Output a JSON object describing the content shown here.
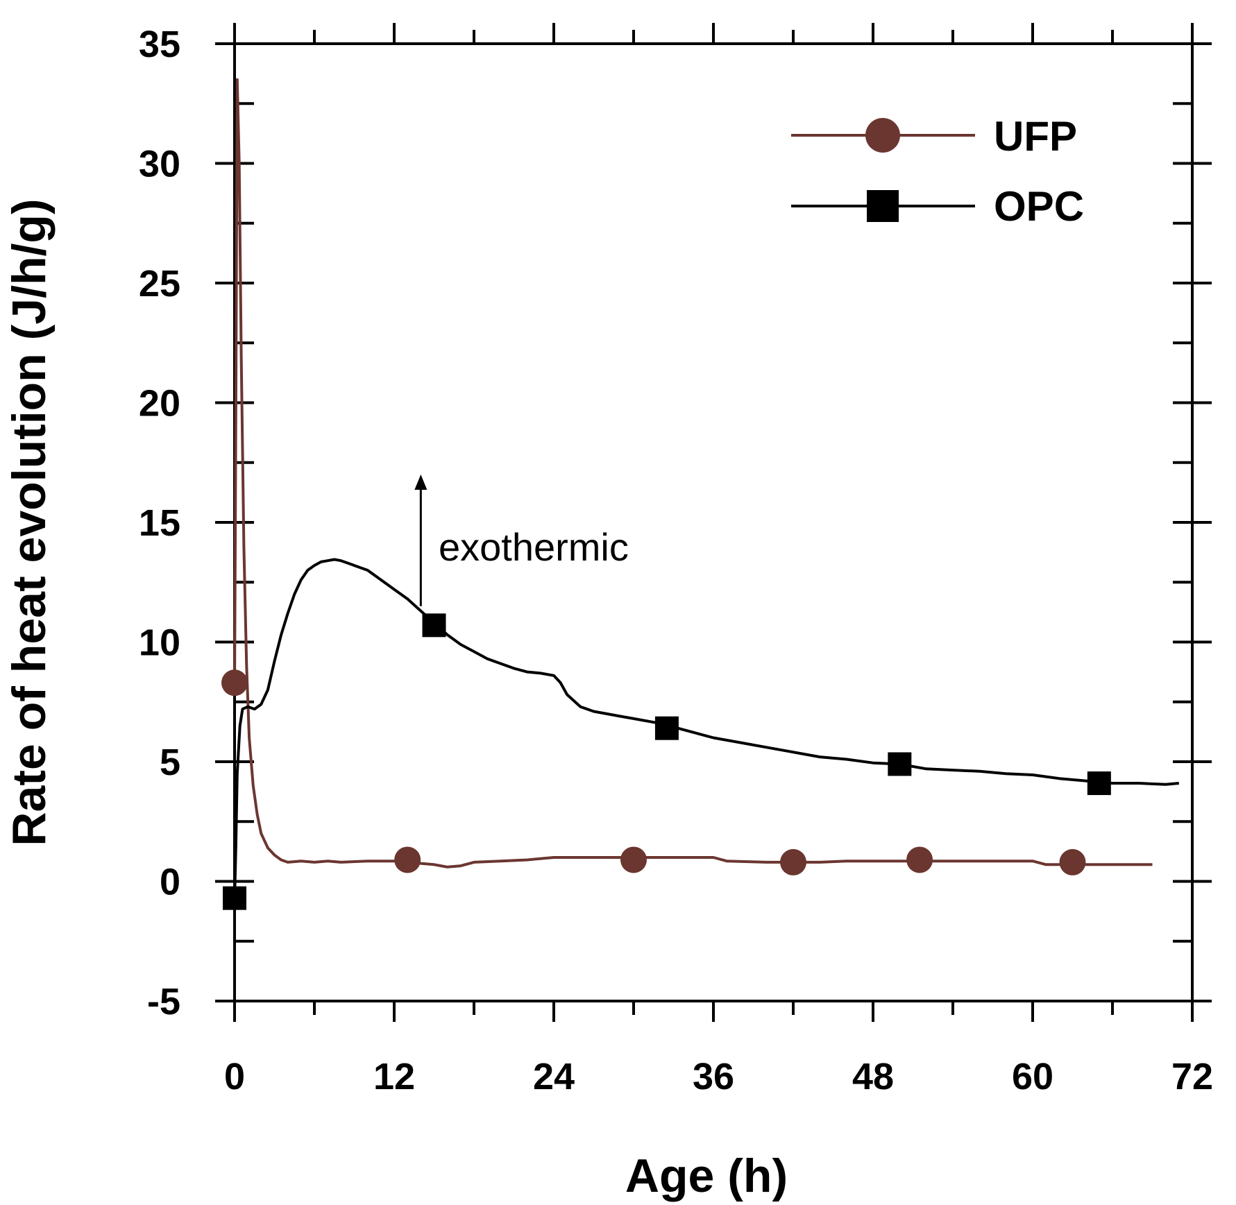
{
  "chart_data": {
    "type": "line",
    "xlabel": "Age (h)",
    "ylabel": "Rate of heat evolution (J/h/g)",
    "xlim": [
      0,
      72
    ],
    "ylim": [
      -5,
      35
    ],
    "xticks": [
      0,
      12,
      24,
      36,
      48,
      60,
      72
    ],
    "xtick_labels": [
      "0",
      "12",
      "24",
      "36",
      "48",
      "60",
      "72"
    ],
    "yticks": [
      -5,
      0,
      5,
      10,
      15,
      20,
      25,
      30,
      35
    ],
    "ytick_labels": [
      "-5",
      "0",
      "5",
      "10",
      "15",
      "20",
      "25",
      "30",
      "35"
    ],
    "grid": false,
    "legend_position": "top-right",
    "annotation": {
      "text": "exothermic",
      "arrow_x": 14,
      "arrow_from_y": 11.5,
      "arrow_to_y": 17
    },
    "series": [
      {
        "name": "UFP",
        "color": "#6b3630",
        "marker": "circle",
        "line": [
          [
            0,
            8
          ],
          [
            0.1,
            20
          ],
          [
            0.2,
            33.5
          ],
          [
            0.35,
            30
          ],
          [
            0.5,
            22
          ],
          [
            0.7,
            14
          ],
          [
            0.9,
            9
          ],
          [
            1.1,
            6
          ],
          [
            1.4,
            4
          ],
          [
            1.7,
            2.8
          ],
          [
            2.0,
            2.0
          ],
          [
            2.5,
            1.4
          ],
          [
            3.0,
            1.1
          ],
          [
            3.5,
            0.9
          ],
          [
            4.0,
            0.8
          ],
          [
            5,
            0.85
          ],
          [
            6,
            0.8
          ],
          [
            7,
            0.85
          ],
          [
            8,
            0.8
          ],
          [
            10,
            0.85
          ],
          [
            12,
            0.85
          ],
          [
            13,
            0.85
          ],
          [
            14,
            0.75
          ],
          [
            15,
            0.7
          ],
          [
            16,
            0.6
          ],
          [
            17,
            0.65
          ],
          [
            18,
            0.8
          ],
          [
            20,
            0.85
          ],
          [
            22,
            0.9
          ],
          [
            24,
            1.0
          ],
          [
            26,
            1.0
          ],
          [
            28,
            1.0
          ],
          [
            30,
            1.0
          ],
          [
            32,
            1.0
          ],
          [
            34,
            1.0
          ],
          [
            36,
            1.0
          ],
          [
            37,
            0.85
          ],
          [
            40,
            0.8
          ],
          [
            42,
            0.8
          ],
          [
            44,
            0.8
          ],
          [
            46,
            0.85
          ],
          [
            48,
            0.85
          ],
          [
            50,
            0.85
          ],
          [
            52,
            0.85
          ],
          [
            54,
            0.85
          ],
          [
            56,
            0.85
          ],
          [
            59,
            0.85
          ],
          [
            60,
            0.85
          ],
          [
            61,
            0.7
          ],
          [
            63,
            0.7
          ],
          [
            65,
            0.7
          ],
          [
            67,
            0.7
          ],
          [
            69,
            0.7
          ]
        ],
        "markers": [
          [
            0,
            8.3
          ],
          [
            13,
            0.9
          ],
          [
            30,
            0.9
          ],
          [
            42,
            0.8
          ],
          [
            51.5,
            0.9
          ],
          [
            63,
            0.8
          ]
        ]
      },
      {
        "name": "OPC",
        "color": "#000000",
        "marker": "square",
        "line": [
          [
            0,
            -0.8
          ],
          [
            0.1,
            1.5
          ],
          [
            0.2,
            4.5
          ],
          [
            0.4,
            6.5
          ],
          [
            0.6,
            7.2
          ],
          [
            1,
            7.3
          ],
          [
            1.5,
            7.2
          ],
          [
            2,
            7.4
          ],
          [
            2.5,
            8
          ],
          [
            3,
            9.2
          ],
          [
            3.5,
            10.3
          ],
          [
            4,
            11.2
          ],
          [
            4.5,
            12
          ],
          [
            5,
            12.6
          ],
          [
            5.5,
            13
          ],
          [
            6,
            13.2
          ],
          [
            6.5,
            13.35
          ],
          [
            7,
            13.4
          ],
          [
            7.5,
            13.45
          ],
          [
            8,
            13.4
          ],
          [
            8.5,
            13.3
          ],
          [
            9,
            13.2
          ],
          [
            10,
            13
          ],
          [
            11,
            12.6
          ],
          [
            12,
            12.2
          ],
          [
            13,
            11.8
          ],
          [
            14,
            11.3
          ],
          [
            15,
            10.8
          ],
          [
            16,
            10.3
          ],
          [
            17,
            9.9
          ],
          [
            18,
            9.6
          ],
          [
            19,
            9.3
          ],
          [
            20,
            9.1
          ],
          [
            21,
            8.9
          ],
          [
            22,
            8.75
          ],
          [
            23,
            8.7
          ],
          [
            24,
            8.6
          ],
          [
            24.5,
            8.3
          ],
          [
            25,
            7.8
          ],
          [
            26,
            7.3
          ],
          [
            27,
            7.1
          ],
          [
            28,
            7.0
          ],
          [
            29,
            6.9
          ],
          [
            30,
            6.8
          ],
          [
            32,
            6.6
          ],
          [
            34,
            6.3
          ],
          [
            36,
            6.0
          ],
          [
            38,
            5.8
          ],
          [
            40,
            5.6
          ],
          [
            42,
            5.4
          ],
          [
            44,
            5.2
          ],
          [
            46,
            5.1
          ],
          [
            48,
            4.95
          ],
          [
            50,
            4.9
          ],
          [
            52,
            4.7
          ],
          [
            54,
            4.65
          ],
          [
            56,
            4.6
          ],
          [
            58,
            4.5
          ],
          [
            60,
            4.45
          ],
          [
            62,
            4.3
          ],
          [
            64,
            4.2
          ],
          [
            66,
            4.1
          ],
          [
            68,
            4.1
          ],
          [
            70,
            4.05
          ],
          [
            71,
            4.1
          ]
        ],
        "markers": [
          [
            0,
            -0.7
          ],
          [
            15,
            10.7
          ],
          [
            32.5,
            6.4
          ],
          [
            50,
            4.9
          ],
          [
            65,
            4.1
          ]
        ]
      }
    ]
  }
}
